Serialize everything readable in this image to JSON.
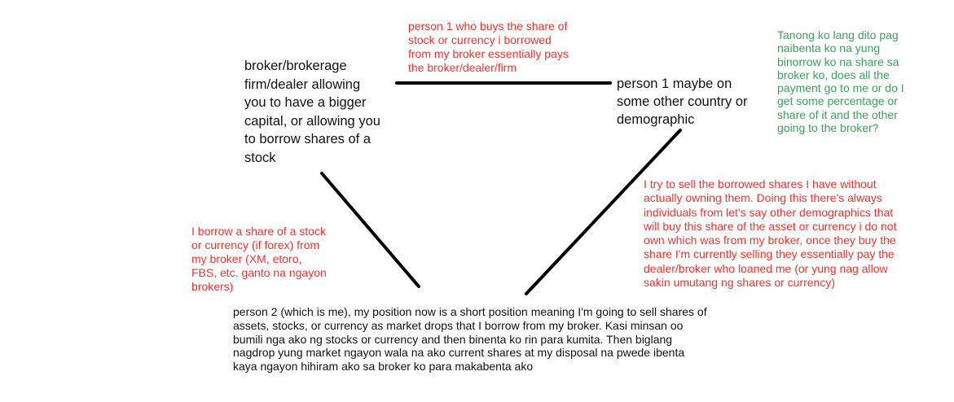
{
  "colors": {
    "node_text": "#111111",
    "annotation_red": "#f2332e",
    "annotation_green": "#3aa35a",
    "connector": "#000000",
    "background": "#ffffff"
  },
  "nodes": {
    "broker": "broker/brokerage\nfirm/dealer allowing\nyou to have a bigger\ncapital, or allowing you\nto borrow shares of a\nstock",
    "person1": "person 1 maybe on\nsome other country or\ndemographic",
    "person2": "person 2 (which is me), my position now is a short position meaning I'm going to sell shares of\nassets, stocks, or currency as market drops that I borrow from my broker. Kasi minsan oo\nbumili nga ako ng stocks or currency and then binenta ko rin para kumita. Then biglang\nnagdrop yung market ngayon wala na ako current shares at my disposal na pwede ibenta\nkaya ngayon hihiram ako sa broker ko para makabenta ako"
  },
  "annotations": {
    "top": "person 1 who buys the share of\nstock or currency i borrowed\nfrom my broker essentially pays\nthe broker/dealer/firm",
    "green_question": "Tanong ko lang dito pag\nnaibenta ko na yung\nbinorrow ko na share sa\nbroker ko, does all the\npayment go to me or do I\nget some percentage or\nshare of it and the other\ngoing to the broker?",
    "left": "I borrow a share of a stock\nor currency (if forex) from\nmy broker (XM, etoro,\nFBS, etc. ganto na ngayon\nbrokers)",
    "right": "I try to sell the borrowed shares I have without\nactually owning them. Doing this there's always\nindividuals from let's say other demographics that\nwill buy this share of the asset or currency i do not\nown which was from my broker, once they buy the\nshare I'm currently selling they essentially pay the\ndealer/broker who loaned me (or yung nag allow\nsakin umutang ng shares or currency)"
  }
}
